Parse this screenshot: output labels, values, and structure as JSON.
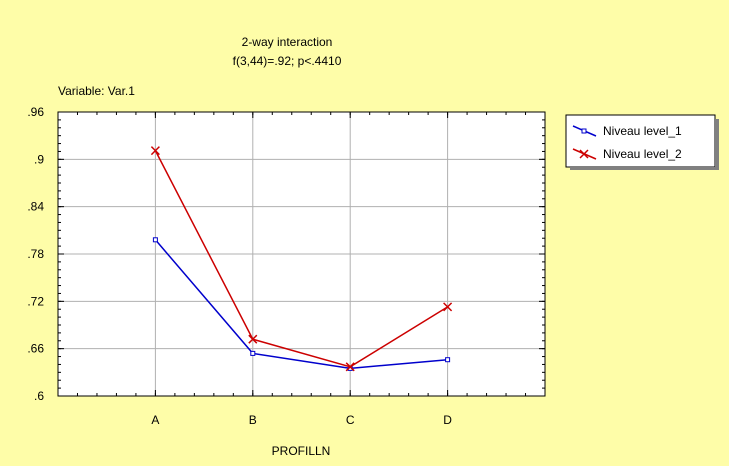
{
  "chart_data": {
    "type": "line",
    "title": "2-way interaction",
    "subtitle": "f(3,44)=.92; p<.4410",
    "variable_label": "Variable: Var.1",
    "xlabel": "PROFILLN",
    "ylabel": "",
    "categories": [
      "A",
      "B",
      "C",
      "D"
    ],
    "ylim": [
      0.6,
      0.96
    ],
    "yticks": [
      0.6,
      0.66,
      0.72,
      0.78,
      0.84,
      0.9,
      0.96
    ],
    "ytick_labels": [
      ".6",
      ".66",
      ".72",
      ".78",
      ".84",
      ".9",
      ".96"
    ],
    "grid": true,
    "legend_position": "right",
    "series": [
      {
        "name": "Niveau level_1",
        "color": "#0000cc",
        "marker": "square",
        "values": [
          0.798,
          0.654,
          0.635,
          0.646
        ]
      },
      {
        "name": "Niveau level_2",
        "color": "#cc0000",
        "marker": "x",
        "values": [
          0.911,
          0.672,
          0.637,
          0.713
        ]
      }
    ]
  },
  "colors": {
    "background": "#fefda8",
    "plot_area": "#ffffff"
  }
}
